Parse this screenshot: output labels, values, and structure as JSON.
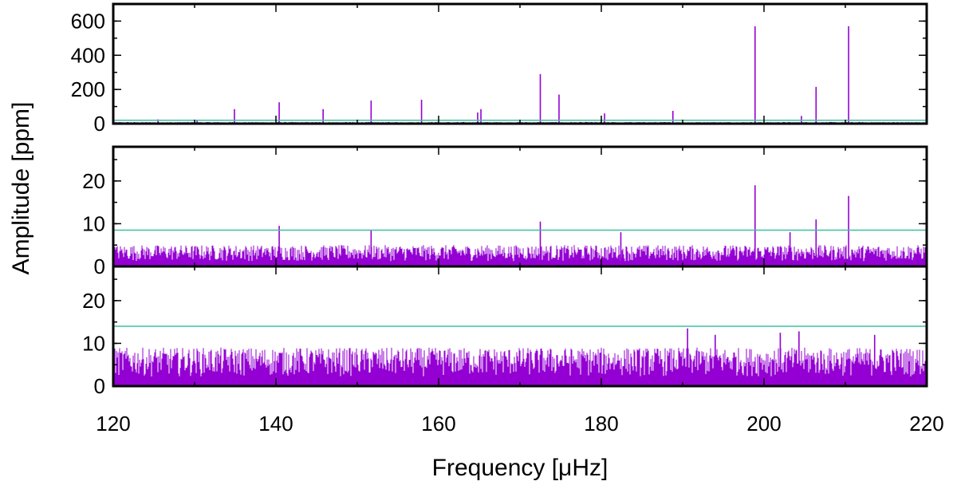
{
  "chart_data": {
    "type": "line",
    "xlabel": "Frequency [μHz]",
    "ylabel": "Amplitude [ppm]",
    "xlim": [
      120,
      220
    ],
    "xticks": [
      120,
      140,
      160,
      180,
      200,
      220
    ],
    "x_tick_labels": [
      "120",
      "140",
      "160",
      "180",
      "200",
      "220"
    ],
    "colors": {
      "spectrum": "#9400d3",
      "threshold": "#3fbf9f",
      "frame": "#000000"
    },
    "panels": [
      {
        "name": "top",
        "ylim": [
          0,
          700
        ],
        "yticks": [
          0,
          200,
          400,
          600
        ],
        "y_tick_labels": [
          "0",
          "200",
          "400",
          "600"
        ],
        "threshold": 20,
        "noise_level": 10,
        "peaks": [
          {
            "x": 125.5,
            "y": 25
          },
          {
            "x": 130.3,
            "y": 20
          },
          {
            "x": 134.9,
            "y": 85
          },
          {
            "x": 140.4,
            "y": 125
          },
          {
            "x": 145.8,
            "y": 85
          },
          {
            "x": 151.7,
            "y": 135
          },
          {
            "x": 157.9,
            "y": 140
          },
          {
            "x": 164.8,
            "y": 65
          },
          {
            "x": 165.2,
            "y": 85
          },
          {
            "x": 172.5,
            "y": 290
          },
          {
            "x": 174.8,
            "y": 170
          },
          {
            "x": 180.4,
            "y": 60
          },
          {
            "x": 188.8,
            "y": 75
          },
          {
            "x": 198.9,
            "y": 570
          },
          {
            "x": 204.6,
            "y": 45
          },
          {
            "x": 206.4,
            "y": 215
          },
          {
            "x": 210.4,
            "y": 570
          }
        ]
      },
      {
        "name": "middle",
        "ylim": [
          0,
          28
        ],
        "yticks": [
          0,
          10,
          20
        ],
        "y_tick_labels": [
          "0",
          "10",
          "20"
        ],
        "threshold": 8.5,
        "noise_level": 5,
        "peaks": [
          {
            "x": 140.4,
            "y": 9.5
          },
          {
            "x": 151.7,
            "y": 8.5
          },
          {
            "x": 172.5,
            "y": 10.5
          },
          {
            "x": 182.4,
            "y": 8
          },
          {
            "x": 198.9,
            "y": 19
          },
          {
            "x": 203.2,
            "y": 8
          },
          {
            "x": 206.4,
            "y": 11
          },
          {
            "x": 210.4,
            "y": 16.5
          }
        ]
      },
      {
        "name": "bottom",
        "ylim": [
          0,
          28
        ],
        "yticks": [
          0,
          10,
          20
        ],
        "y_tick_labels": [
          "0",
          "10",
          "20"
        ],
        "threshold": 14,
        "noise_level": 9,
        "peaks": [
          {
            "x": 190.6,
            "y": 13.5
          },
          {
            "x": 202.0,
            "y": 12.5
          },
          {
            "x": 204.3,
            "y": 12.8
          },
          {
            "x": 194.0,
            "y": 12
          },
          {
            "x": 213.6,
            "y": 12
          }
        ]
      }
    ]
  }
}
